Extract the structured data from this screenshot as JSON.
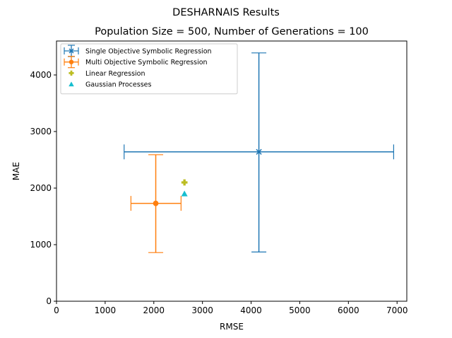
{
  "chart_data": {
    "type": "scatter",
    "suptitle": "DESHARNAIS Results",
    "title": "Population Size = 500, Number of Generations = 100",
    "xlabel": "RMSE",
    "ylabel": "MAE",
    "xlim": [
      0,
      7200
    ],
    "ylim": [
      0,
      4600
    ],
    "xticks": [
      0,
      1000,
      2000,
      3000,
      4000,
      5000,
      6000,
      7000
    ],
    "yticks": [
      0,
      1000,
      2000,
      3000,
      4000
    ],
    "legend_position": "top-left",
    "series": [
      {
        "name": "Single Objective Symbolic Regression",
        "marker": "x",
        "color": "#1f77b4",
        "x": 4160,
        "y": 2640,
        "xerr": [
          1390,
          6930
        ],
        "yerr": [
          870,
          4390
        ]
      },
      {
        "name": "Multi Objective Symbolic Regression",
        "marker": "o",
        "color": "#ff7f0e",
        "x": 2040,
        "y": 1730,
        "xerr": [
          1530,
          2560
        ],
        "yerr": [
          860,
          2590
        ]
      },
      {
        "name": "Linear Regression",
        "marker": "P",
        "color": "#bcbd22",
        "x": 2630,
        "y": 2100
      },
      {
        "name": "Gaussian Processes",
        "marker": "^",
        "color": "#17becf",
        "x": 2630,
        "y": 1900
      }
    ]
  }
}
